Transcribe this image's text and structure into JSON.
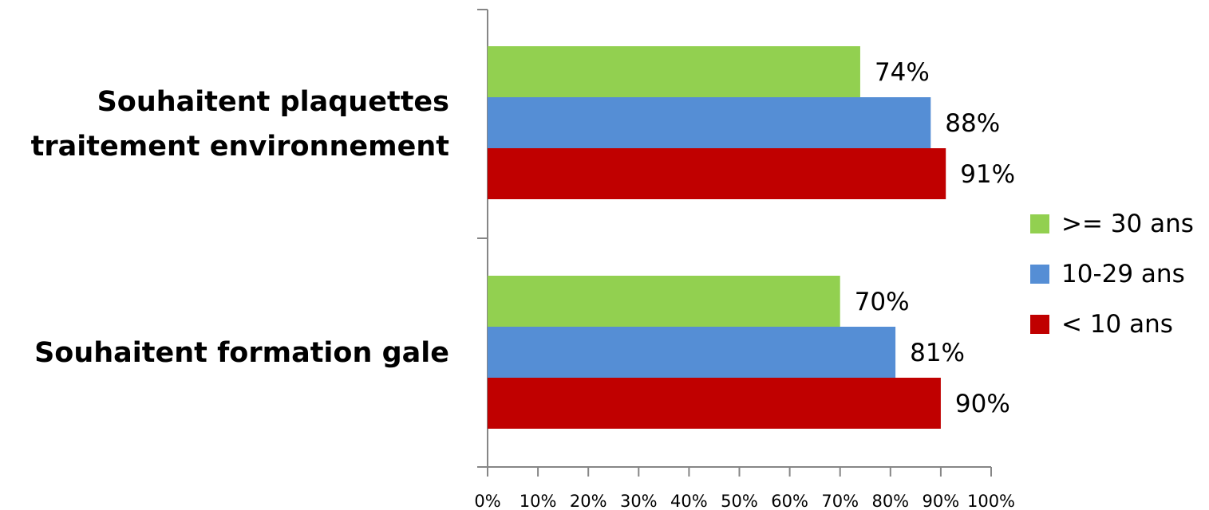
{
  "chart_data": {
    "type": "bar",
    "orientation": "horizontal",
    "categories": [
      "Souhaitent plaquettes traitement environnement",
      "Souhaitent formation gale"
    ],
    "category_lines": [
      [
        "Souhaitent plaquettes",
        "traitement environnement"
      ],
      [
        "Souhaitent formation gale"
      ]
    ],
    "series": [
      {
        "name": ">= 30 ans",
        "color": "#92d050",
        "values": [
          74,
          70
        ]
      },
      {
        "name": "10-29 ans",
        "color": "#558ed5",
        "values": [
          88,
          81
        ]
      },
      {
        "name": "< 10 ans",
        "color": "#c00000",
        "values": [
          91,
          90
        ]
      }
    ],
    "data_labels": [
      [
        "74%",
        "70%"
      ],
      [
        "88%",
        "81%"
      ],
      [
        "91%",
        "90%"
      ]
    ],
    "x_ticks": [
      "0%",
      "10%",
      "20%",
      "30%",
      "40%",
      "50%",
      "60%",
      "70%",
      "80%",
      "90%",
      "100%"
    ],
    "xlim": [
      0,
      100
    ],
    "grid": false,
    "legend_position": "right"
  }
}
